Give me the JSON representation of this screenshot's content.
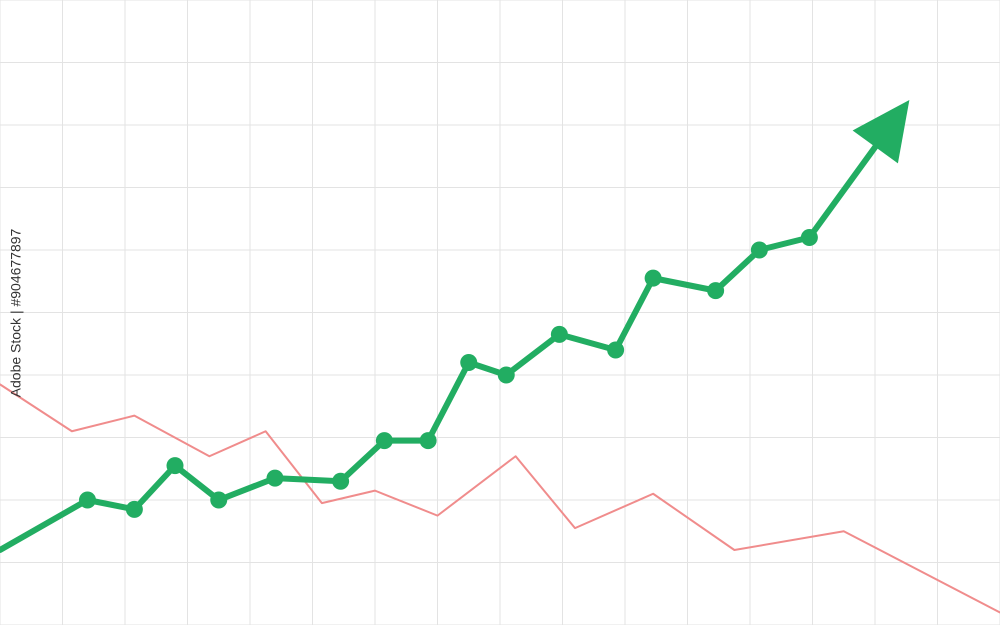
{
  "watermark": {
    "text": "Adobe Stock | #904677897"
  },
  "colors": {
    "background": "#ffffff",
    "grid": "#e3e3e3",
    "rise": "#22ad62",
    "fall": "#f08c8c"
  },
  "chart_data": {
    "type": "line",
    "title": "",
    "xlabel": "",
    "ylabel": "",
    "xlim": [
      0,
      16
    ],
    "ylim": [
      0,
      10
    ],
    "grid": true,
    "series": [
      {
        "role": "rising",
        "color": "#22ad62",
        "markers": true,
        "arrow": true,
        "points": [
          [
            0,
            1.2
          ],
          [
            1.4,
            2.0
          ],
          [
            2.15,
            1.85
          ],
          [
            2.8,
            2.55
          ],
          [
            3.5,
            2.0
          ],
          [
            4.4,
            2.35
          ],
          [
            5.45,
            2.3
          ],
          [
            6.15,
            2.95
          ],
          [
            6.85,
            2.95
          ],
          [
            7.5,
            4.2
          ],
          [
            8.1,
            4.0
          ],
          [
            8.95,
            4.65
          ],
          [
            9.85,
            4.4
          ],
          [
            10.45,
            5.55
          ],
          [
            11.45,
            5.35
          ],
          [
            12.15,
            6.0
          ],
          [
            12.95,
            6.2
          ],
          [
            14.55,
            8.4
          ]
        ]
      },
      {
        "role": "falling",
        "color": "#f08c8c",
        "markers": false,
        "arrow": false,
        "points": [
          [
            0,
            3.85
          ],
          [
            1.15,
            3.1
          ],
          [
            2.15,
            3.35
          ],
          [
            3.35,
            2.7
          ],
          [
            4.25,
            3.1
          ],
          [
            5.15,
            1.95
          ],
          [
            6.0,
            2.15
          ],
          [
            7.0,
            1.75
          ],
          [
            8.25,
            2.7
          ],
          [
            9.2,
            1.55
          ],
          [
            10.45,
            2.1
          ],
          [
            11.75,
            1.2
          ],
          [
            13.5,
            1.5
          ],
          [
            16.0,
            0.2
          ]
        ]
      }
    ]
  }
}
